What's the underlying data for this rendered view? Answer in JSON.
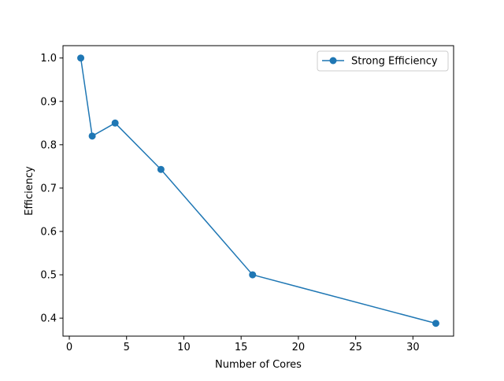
{
  "chart_data": {
    "type": "line",
    "title": "",
    "xlabel": "Number of Cores",
    "ylabel": "Efficiency",
    "xlim": [
      -0.55,
      33.55
    ],
    "ylim": [
      0.3585,
      1.0285
    ],
    "x_ticks": [
      0,
      5,
      10,
      15,
      20,
      25,
      30
    ],
    "x_tick_labels": [
      "0",
      "5",
      "10",
      "15",
      "20",
      "25",
      "30"
    ],
    "y_ticks": [
      0.4,
      0.5,
      0.6,
      0.7,
      0.8,
      0.9,
      1.0
    ],
    "y_tick_labels": [
      "0.4",
      "0.5",
      "0.6",
      "0.7",
      "0.8",
      "0.9",
      "1.0"
    ],
    "grid": false,
    "legend_position": "upper right",
    "series": [
      {
        "name": "Strong Efficiency",
        "color": "#1f77b4",
        "marker": "circle",
        "x": [
          1,
          2,
          4,
          8,
          16,
          32
        ],
        "y": [
          1.0,
          0.82,
          0.85,
          0.743,
          0.5,
          0.388
        ]
      }
    ]
  }
}
